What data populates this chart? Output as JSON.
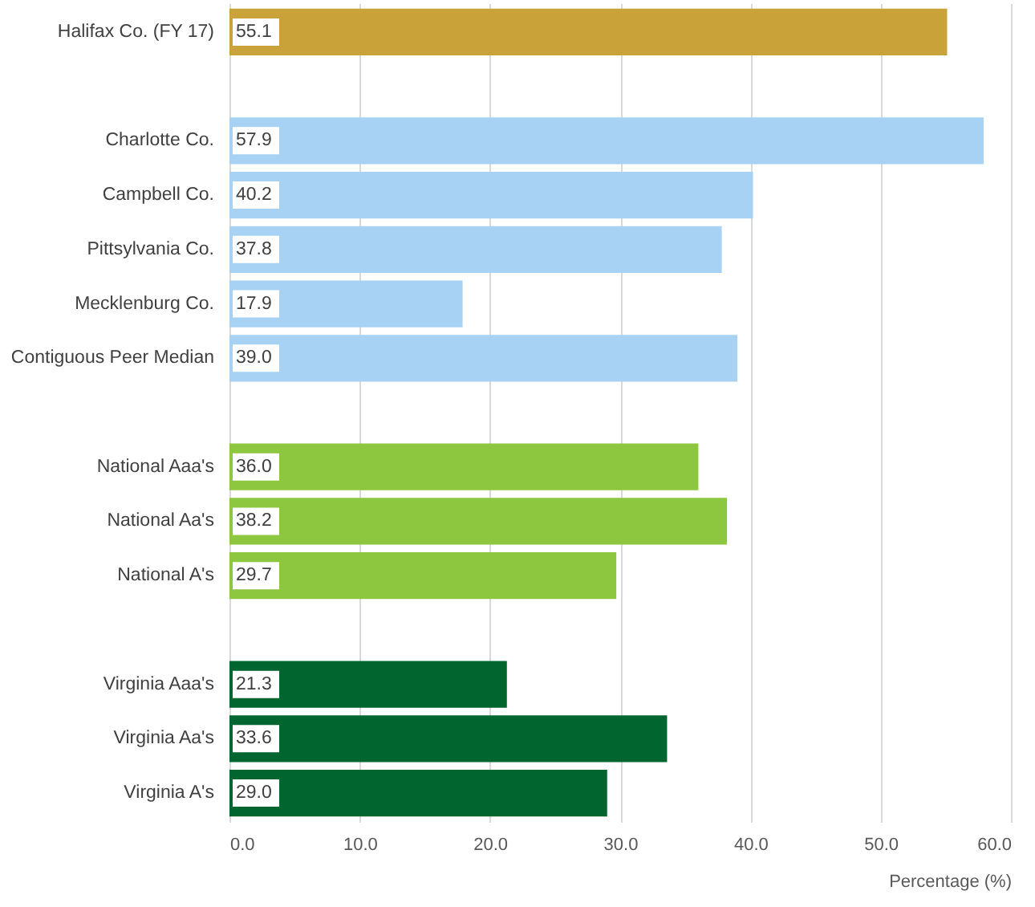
{
  "chart_data": {
    "type": "bar",
    "orientation": "horizontal",
    "xlabel": "Percentage (%)",
    "categories": [
      "Halifax Co. (FY 17)",
      "Charlotte Co.",
      "Campbell Co.",
      "Pittsylvania Co.",
      "Mecklenburg Co.",
      "Contiguous Peer Median",
      "National Aaa's",
      "National Aa's",
      "National A's",
      "Virginia Aaa's",
      "Virginia Aa's",
      "Virginia A's"
    ],
    "values": [
      55.1,
      57.9,
      40.2,
      37.8,
      17.9,
      39.0,
      36.0,
      38.2,
      29.7,
      21.3,
      33.6,
      29.0
    ],
    "colors": [
      "#c9a23a",
      "#a7d2f4",
      "#a7d2f4",
      "#a7d2f4",
      "#a7d2f4",
      "#a7d2f4",
      "#8dc63f",
      "#8dc63f",
      "#8dc63f",
      "#00652e",
      "#00652e",
      "#00652e"
    ],
    "xlim": [
      0,
      60
    ],
    "xticks": [
      {
        "value": 0,
        "label": "0.0"
      },
      {
        "value": 10,
        "label": "10.0"
      },
      {
        "value": 20,
        "label": "20.0"
      },
      {
        "value": 30,
        "label": "30.0"
      },
      {
        "value": 40,
        "label": "40.0"
      },
      {
        "value": 50,
        "label": "50.0"
      },
      {
        "value": 60,
        "label": "60.0"
      }
    ],
    "value_labels": [
      "55.1",
      "57.9",
      "40.2",
      "37.8",
      "17.9",
      "39.0",
      "36.0",
      "38.2",
      "29.7",
      "21.3",
      "33.6",
      "29.0"
    ],
    "grid": "x"
  }
}
